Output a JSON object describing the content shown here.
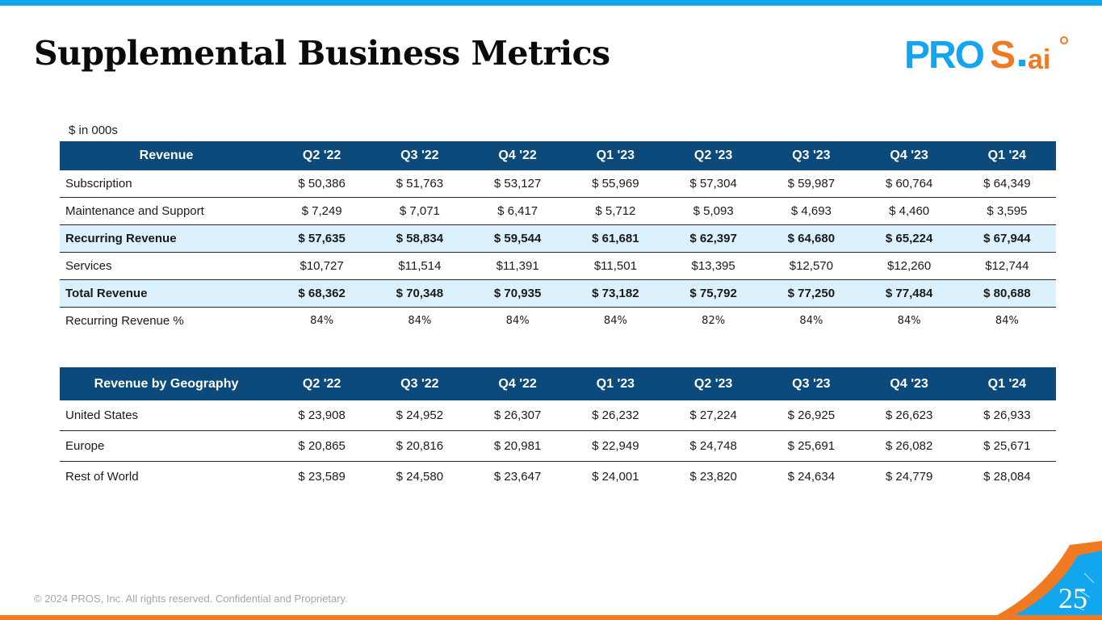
{
  "slide": {
    "title": "Supplemental Business Metrics",
    "unit_note": "$ in 000s",
    "footer": "© 2024 PROS, Inc. All rights reserved. Confidential and Proprietary.",
    "page_number": "25",
    "logo_text": "PROS.ai",
    "colors": {
      "brand_blue": "#12a6ee",
      "brand_orange": "#f07a21",
      "header_navy": "#0c4a7c",
      "highlight": "#dbf1fd"
    }
  },
  "revenue_table": {
    "headers": [
      "Revenue",
      "Q2 '22",
      "Q3 '22",
      "Q4 '22",
      "Q1 '23",
      "Q2 '23",
      "Q3 '23",
      "Q4 '23",
      "Q1 '24"
    ],
    "rows": [
      {
        "label": "Subscription",
        "values": [
          "$ 50,386",
          "$ 51,763",
          "$ 53,127",
          "$ 55,969",
          "$ 57,304",
          "$ 59,987",
          "$ 60,764",
          "$ 64,349"
        ]
      },
      {
        "label": "Maintenance and Support",
        "values": [
          "$  7,249",
          "$  7,071",
          "$  6,417",
          "$  5,712",
          "$   5,093",
          "$  4,693",
          "$  4,460",
          "$   3,595"
        ]
      },
      {
        "label": "Recurring Revenue",
        "values": [
          "$ 57,635",
          "$ 58,834",
          "$ 59,544",
          "$ 61,681",
          "$ 62,397",
          "$ 64,680",
          "$ 65,224",
          "$ 67,944"
        ]
      },
      {
        "label": "Services",
        "values": [
          "$10,727",
          "$11,514",
          "$11,391",
          "$11,501",
          "$13,395",
          "$12,570",
          "$12,260",
          "$12,744"
        ]
      },
      {
        "label": "Total Revenue",
        "values": [
          "$ 68,362",
          "$ 70,348",
          "$ 70,935",
          "$ 73,182",
          "$ 75,792",
          "$ 77,250",
          "$ 77,484",
          "$ 80,688"
        ]
      },
      {
        "label": "Recurring Revenue %",
        "values": [
          "84%",
          "84%",
          "84%",
          "84%",
          "82%",
          "84%",
          "84%",
          "84%"
        ]
      }
    ]
  },
  "geo_table": {
    "headers": [
      "Revenue by Geography",
      "Q2 '22",
      "Q3 '22",
      "Q4 '22",
      "Q1 '23",
      "Q2 '23",
      "Q3 '23",
      "Q4 '23",
      "Q1 '24"
    ],
    "rows": [
      {
        "label": "United States",
        "values": [
          "$ 23,908",
          "$ 24,952",
          "$ 26,307",
          "$ 26,232",
          "$ 27,224",
          "$ 26,925",
          "$ 26,623",
          "$ 26,933"
        ]
      },
      {
        "label": "Europe",
        "values": [
          "$ 20,865",
          "$ 20,816",
          "$ 20,981",
          "$ 22,949",
          "$ 24,748",
          "$ 25,691",
          "$ 26,082",
          "$ 25,671"
        ]
      },
      {
        "label": "Rest of World",
        "values": [
          "$ 23,589",
          "$ 24,580",
          "$ 23,647",
          "$ 24,001",
          "$ 23,820",
          "$ 24,634",
          "$ 24,779",
          "$ 28,084"
        ]
      }
    ]
  }
}
